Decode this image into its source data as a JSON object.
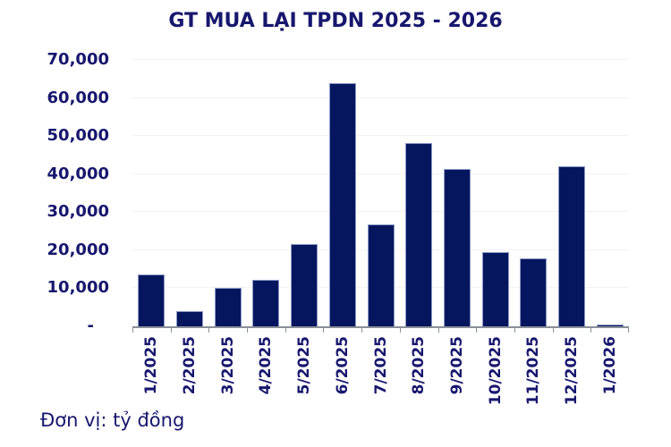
{
  "title": "GT MUA LẠI TPDN 2025 - 2026",
  "footer": {
    "text": "Đơn vị: tỷ đồng"
  },
  "colors": {
    "bar": "#06165E",
    "bar_border": "#8B9AC8",
    "text": "#17176E",
    "gridline": "#F2F2F2",
    "axis": "#8A8F98"
  },
  "chart_data": {
    "type": "bar",
    "title": "GT MUA LẠI TPDN 2025 - 2026",
    "unit_note": "Đơn vị: tỷ đồng",
    "categories": [
      "1/2025",
      "2/2025",
      "3/2025",
      "4/2025",
      "5/2025",
      "6/2025",
      "7/2025",
      "8/2025",
      "9/2025",
      "10/2025",
      "11/2025",
      "12/2025",
      "1/2026"
    ],
    "values": [
      13600,
      3900,
      10200,
      12200,
      21700,
      63800,
      26700,
      48100,
      41300,
      19400,
      17800,
      42100,
      500
    ],
    "xlabel": "",
    "ylabel": "",
    "ylim": [
      0,
      70000
    ],
    "yticks": [
      {
        "value": 70000,
        "label": "70,000"
      },
      {
        "value": 60000,
        "label": "60,000"
      },
      {
        "value": 50000,
        "label": "50,000"
      },
      {
        "value": 40000,
        "label": "40,000"
      },
      {
        "value": 30000,
        "label": "30,000"
      },
      {
        "value": 20000,
        "label": "20,000"
      },
      {
        "value": 10000,
        "label": "10,000"
      },
      {
        "value": 0,
        "label": "-"
      }
    ],
    "grid": "horizontal",
    "legend": "none",
    "x_tick_rotation_deg": 90
  }
}
